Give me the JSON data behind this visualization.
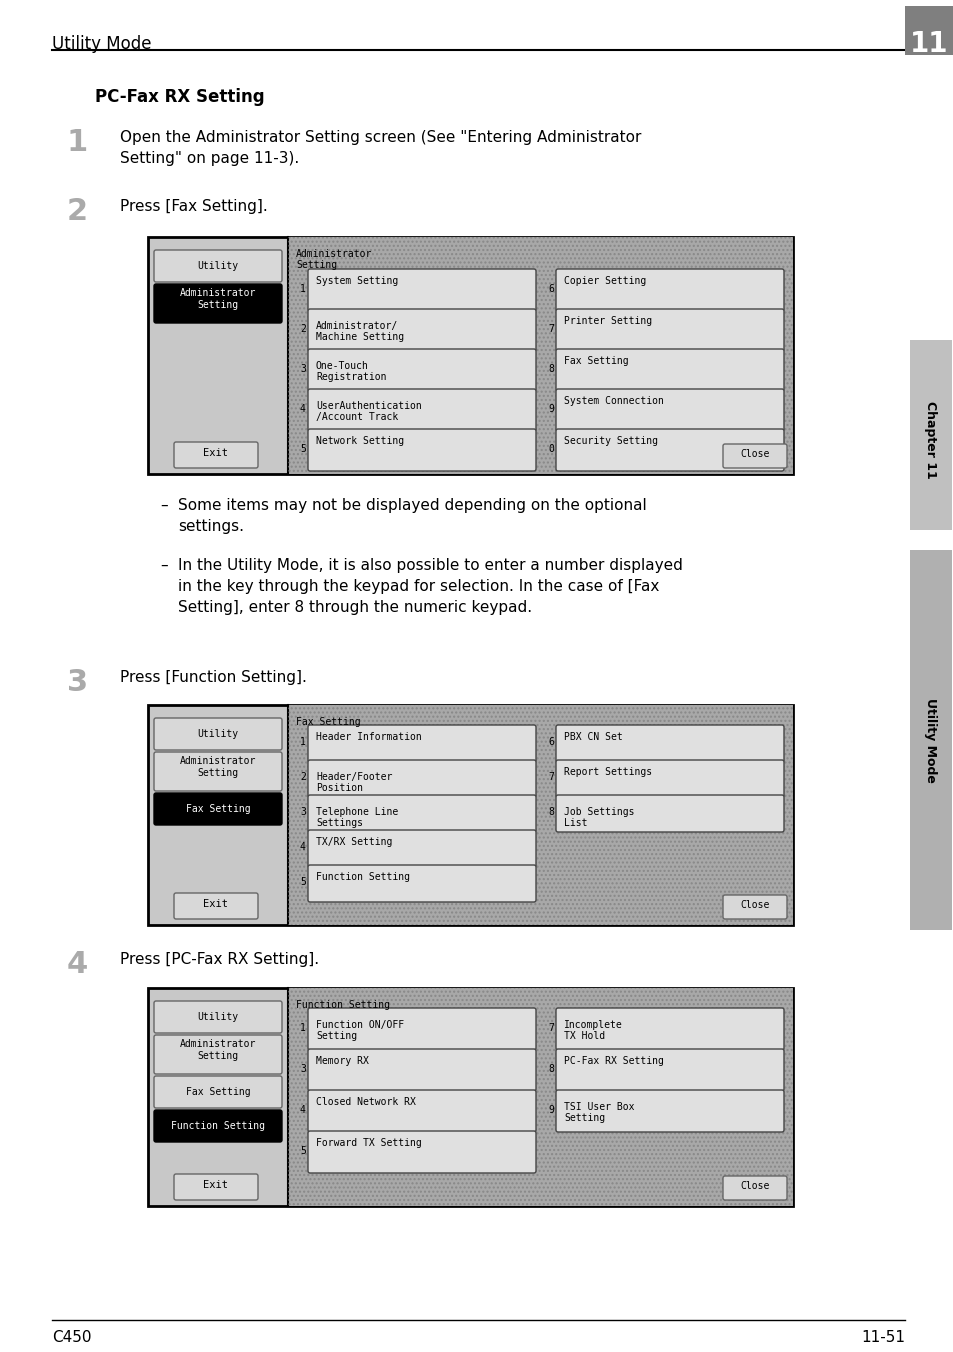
{
  "page_title": "Utility Mode",
  "chapter_num": "11",
  "section_title": "PC-Fax RX Setting",
  "step1_num": "1",
  "step1_text": "Open the Administrator Setting screen (See \"Entering Administrator\nSetting\" on page 11-3).",
  "step2_num": "2",
  "step2_text": "Press [Fax Setting].",
  "step3_num": "3",
  "step3_text": "Press [Function Setting].",
  "step4_num": "4",
  "step4_text": "Press [PC-Fax RX Setting].",
  "bullet1": "Some items may not be displayed depending on the optional\nsettings.",
  "bullet2": "In the Utility Mode, it is also possible to enter a number displayed\nin the key through the keypad for selection. In the case of [Fax\nSetting], enter 8 through the numeric keypad.",
  "footer_left": "C450",
  "footer_right": "11-51",
  "sidebar_ch": "Chapter 11",
  "sidebar_util": "Utility Mode",
  "bg_color": "#ffffff"
}
